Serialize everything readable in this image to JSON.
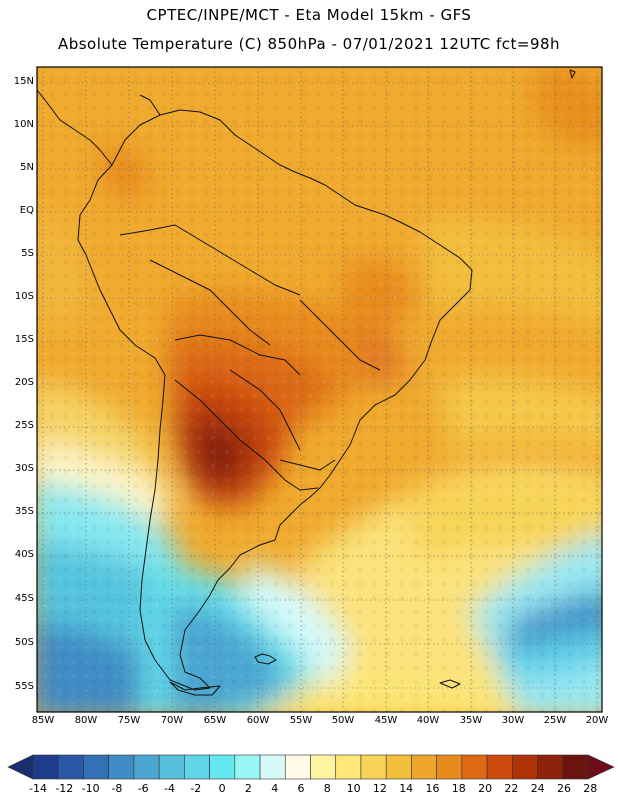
{
  "header": {
    "line1": "CPTEC/INPE/MCT -  Eta Model 15km - GFS",
    "line2": "Absolute Temperature (C) 850hPa - 07/01/2021 12UTC fct=98h"
  },
  "map": {
    "lat_labels": [
      "15N",
      "10N",
      "5N",
      "EQ",
      "5S",
      "10S",
      "15S",
      "20S",
      "25S",
      "30S",
      "35S",
      "40S",
      "45S",
      "50S",
      "55S"
    ],
    "lon_labels": [
      "85W",
      "80W",
      "75W",
      "70W",
      "65W",
      "60W",
      "55W",
      "50W",
      "45W",
      "40W",
      "35W",
      "30W",
      "25W",
      "20W"
    ]
  },
  "colorbar": {
    "labels": [
      "-14",
      "-12",
      "-10",
      "-8",
      "-6",
      "-4",
      "-2",
      "0",
      "2",
      "4",
      "6",
      "8",
      "10",
      "12",
      "14",
      "16",
      "18",
      "20",
      "22",
      "24",
      "26",
      "28"
    ],
    "colors": [
      "#1f3d8c",
      "#2a58a6",
      "#3371b6",
      "#3f8cc6",
      "#4ba6d2",
      "#56c0dd",
      "#5fd6e8",
      "#66e8f0",
      "#9af5f5",
      "#d6fafa",
      "#fffbe6",
      "#fff5a0",
      "#fde776",
      "#f8d456",
      "#f3be3c",
      "#eea52b",
      "#e88a1e",
      "#dd6913",
      "#cc4a0c",
      "#b03308",
      "#8f220a",
      "#6a1410"
    ]
  }
}
